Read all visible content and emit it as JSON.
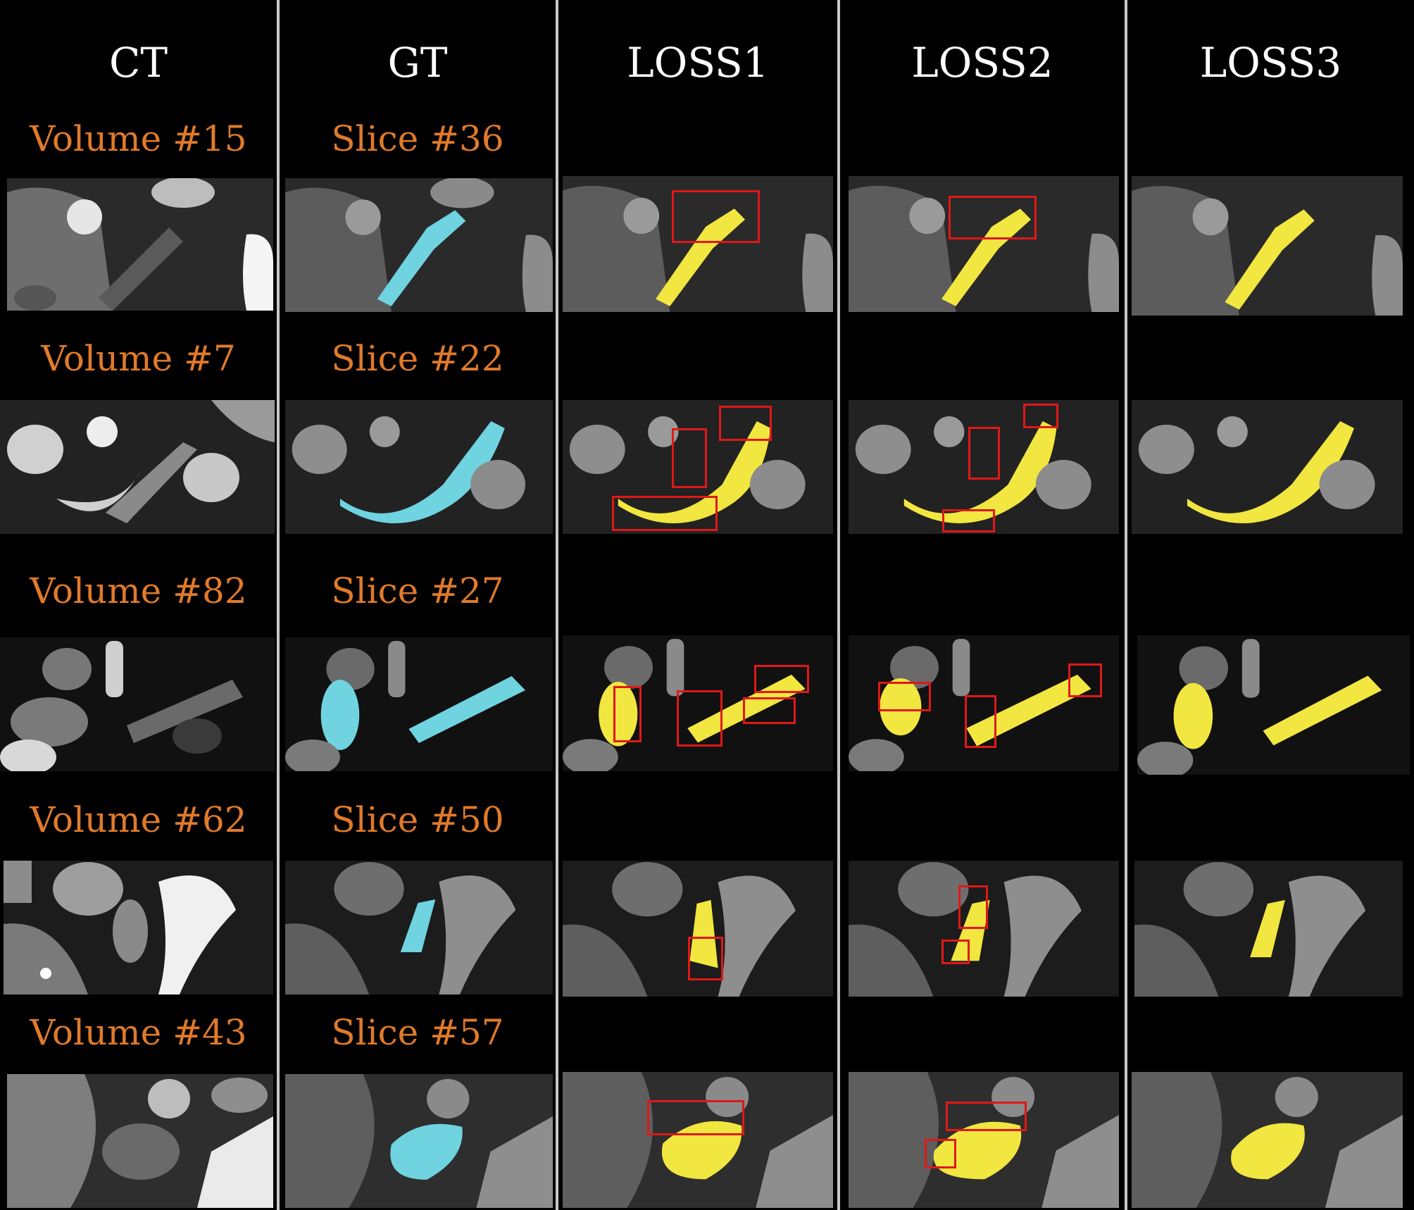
{
  "headers": {
    "ct": "CT",
    "gt": "GT",
    "loss1": "LOSS1",
    "loss2": "LOSS2",
    "loss3": "LOSS3"
  },
  "rows": [
    {
      "volume": "Volume #15",
      "slice": "Slice #36"
    },
    {
      "volume": "Volume #7",
      "slice": "Slice #22"
    },
    {
      "volume": "Volume #82",
      "slice": "Slice #27"
    },
    {
      "volume": "Volume #62",
      "slice": "Slice #50"
    },
    {
      "volume": "Volume #43",
      "slice": "Slice #57"
    }
  ],
  "colors": {
    "background": "#000000",
    "separator": "#c8c8c8",
    "label_text": "#e07a2a",
    "header_text": "#ffffff",
    "ground_truth_mask": "#6fd3e0",
    "prediction_mask": "#f2e640",
    "highlight_box": "#e01818"
  }
}
